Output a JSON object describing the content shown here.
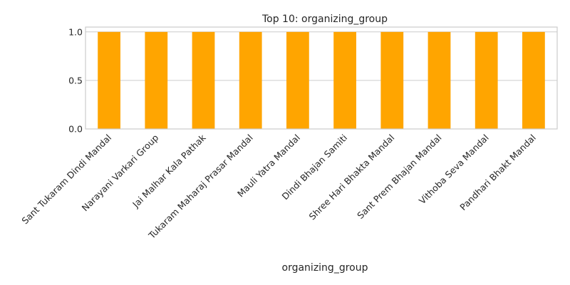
{
  "chart_data": {
    "type": "bar",
    "title": "Top 10: organizing_group",
    "xlabel": "organizing_group",
    "ylabel": "",
    "categories": [
      "Sant Tukaram Dindi Mandal",
      "Narayani Varkari Group",
      "Jai Malhar Kala Pathak",
      "Tukaram Maharaj Prasar Mandal",
      "Mauli Yatra Mandal",
      "Dindi Bhajan Samiti",
      "Shree Hari Bhakta Mandal",
      "Sant Prem Bhajan Mandal",
      "Vithoba Seva Mandal",
      "Pandhari Bhakt Mandal"
    ],
    "values": [
      1,
      1,
      1,
      1,
      1,
      1,
      1,
      1,
      1,
      1
    ],
    "ylim": [
      0,
      1.05
    ],
    "yticks": [
      0.0,
      0.5,
      1.0
    ],
    "ytick_labels": [
      "0.0",
      "0.5",
      "1.0"
    ],
    "grid": true,
    "bar_color": "#FFA500",
    "grid_color": "#CCCCCC",
    "frame_color": "#CCCCCC"
  }
}
